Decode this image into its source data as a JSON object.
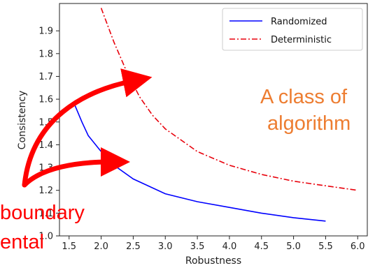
{
  "chart_data": {
    "type": "line",
    "xlabel": "Robustness",
    "ylabel": "Consistency",
    "xlim": [
      1.35,
      6.15
    ],
    "ylim": [
      1.0,
      2.02
    ],
    "xticks": [
      1.5,
      2.0,
      2.5,
      3.0,
      3.5,
      4.0,
      4.5,
      5.0,
      5.5,
      6.0
    ],
    "yticks": [
      1.0,
      1.1,
      1.2,
      1.3,
      1.4,
      1.5,
      1.6,
      1.7,
      1.8,
      1.9
    ],
    "grid": false,
    "legend_position": "top-right",
    "series": [
      {
        "name": "Randomized",
        "color": "#0000ff",
        "style": "solid",
        "x": [
          1.58,
          1.7,
          1.8,
          2.0,
          2.2,
          2.5,
          3.0,
          3.5,
          4.0,
          4.5,
          5.0,
          5.5
        ],
        "y": [
          1.58,
          1.5,
          1.44,
          1.37,
          1.31,
          1.25,
          1.185,
          1.15,
          1.125,
          1.1,
          1.08,
          1.065
        ]
      },
      {
        "name": "Deterministic",
        "color": "#e8000b",
        "style": "dashdot",
        "x": [
          2.0,
          2.2,
          2.4,
          2.6,
          2.8,
          3.0,
          3.5,
          4.0,
          4.5,
          5.0,
          5.5,
          6.0
        ],
        "y": [
          2.0,
          1.85,
          1.72,
          1.61,
          1.53,
          1.47,
          1.37,
          1.31,
          1.27,
          1.24,
          1.22,
          1.2
        ]
      }
    ]
  },
  "annotations": {
    "class_text_line1": "A class of",
    "class_text_line2": "algorithm",
    "boundary_text_line1": "boundary",
    "boundary_text_line2": "ental",
    "class_text_color": "#ed7d31",
    "boundary_text_color": "#ff0000",
    "arrow_color": "#ff0000"
  }
}
